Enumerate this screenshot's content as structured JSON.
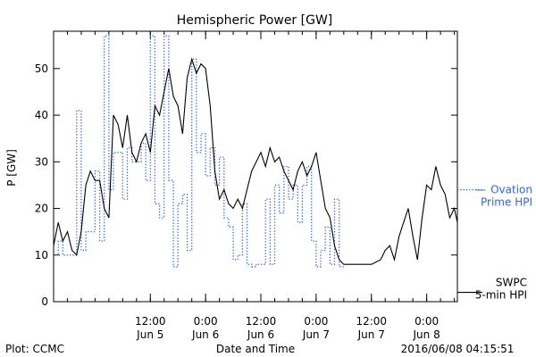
{
  "chart_data": {
    "type": "line",
    "title": "Hemispheric Power [GW]",
    "ylabel": "P [GW]",
    "xlabel": "Date and Time",
    "ylim": [
      0,
      58
    ],
    "xlim": [
      "2016-06-04 15:00",
      "2016-06-08 06:40"
    ],
    "grid": false,
    "y_ticks": [
      0,
      10,
      20,
      30,
      40,
      50
    ],
    "x_ticks": [
      {
        "time": "2016-06-05 12:00",
        "label_top": "12:00",
        "label_bottom": "Jun 5"
      },
      {
        "time": "2016-06-06 00:00",
        "label_top": "0:00",
        "label_bottom": "Jun 6"
      },
      {
        "time": "2016-06-06 12:00",
        "label_top": "12:00",
        "label_bottom": "Jun 6"
      },
      {
        "time": "2016-06-07 00:00",
        "label_top": "0:00",
        "label_bottom": "Jun 7"
      },
      {
        "time": "2016-06-07 12:00",
        "label_top": "12:00",
        "label_bottom": "Jun 7"
      },
      {
        "time": "2016-06-08 00:00",
        "label_top": "0:00",
        "label_bottom": "Jun 8"
      }
    ],
    "series": [
      {
        "name": "Ovation Prime HPI",
        "legend_lines": [
          "Ovation",
          "Prime HPI"
        ],
        "style": "dotted",
        "color": "#3366dd",
        "legend_value": 24,
        "points": [
          [
            "2016-06-04 15:00",
            10
          ],
          [
            "2016-06-04 16:00",
            10
          ],
          [
            "2016-06-04 16:00",
            13
          ],
          [
            "2016-06-04 17:00",
            13
          ],
          [
            "2016-06-04 17:00",
            10
          ],
          [
            "2016-06-04 20:00",
            10
          ],
          [
            "2016-06-04 20:00",
            41
          ],
          [
            "2016-06-04 21:00",
            41
          ],
          [
            "2016-06-04 21:00",
            11
          ],
          [
            "2016-06-04 22:00",
            11
          ],
          [
            "2016-06-04 22:00",
            15
          ],
          [
            "2016-06-05 00:00",
            15
          ],
          [
            "2016-06-05 00:00",
            28
          ],
          [
            "2016-06-05 01:00",
            28
          ],
          [
            "2016-06-05 01:00",
            13
          ],
          [
            "2016-06-05 02:00",
            13
          ],
          [
            "2016-06-05 02:00",
            57
          ],
          [
            "2016-06-05 03:00",
            57
          ],
          [
            "2016-06-05 03:00",
            24
          ],
          [
            "2016-06-05 04:00",
            24
          ],
          [
            "2016-06-05 04:00",
            32
          ],
          [
            "2016-06-05 06:00",
            32
          ],
          [
            "2016-06-05 06:00",
            22
          ],
          [
            "2016-06-05 07:00",
            22
          ],
          [
            "2016-06-05 07:00",
            33
          ],
          [
            "2016-06-05 08:00",
            33
          ],
          [
            "2016-06-05 08:00",
            30
          ],
          [
            "2016-06-05 10:00",
            30
          ],
          [
            "2016-06-05 10:00",
            34
          ],
          [
            "2016-06-05 11:00",
            34
          ],
          [
            "2016-06-05 11:00",
            26
          ],
          [
            "2016-06-05 12:00",
            26
          ],
          [
            "2016-06-05 12:00",
            57
          ],
          [
            "2016-06-05 13:00",
            57
          ],
          [
            "2016-06-05 13:00",
            21
          ],
          [
            "2016-06-05 14:00",
            21
          ],
          [
            "2016-06-05 14:00",
            18
          ],
          [
            "2016-06-05 15:00",
            18
          ],
          [
            "2016-06-05 15:00",
            57
          ],
          [
            "2016-06-05 16:00",
            57
          ],
          [
            "2016-06-05 16:00",
            26
          ],
          [
            "2016-06-05 17:00",
            26
          ],
          [
            "2016-06-05 17:00",
            7.5
          ],
          [
            "2016-06-05 18:00",
            7.5
          ],
          [
            "2016-06-05 18:00",
            21
          ],
          [
            "2016-06-05 19:00",
            21
          ],
          [
            "2016-06-05 19:00",
            23
          ],
          [
            "2016-06-05 20:00",
            23
          ],
          [
            "2016-06-05 20:00",
            11
          ],
          [
            "2016-06-05 21:00",
            11
          ],
          [
            "2016-06-05 21:00",
            52
          ],
          [
            "2016-06-05 22:00",
            52
          ],
          [
            "2016-06-05 22:00",
            32
          ],
          [
            "2016-06-05 23:00",
            32
          ],
          [
            "2016-06-05 23:00",
            36
          ],
          [
            "2016-06-06 00:00",
            36
          ],
          [
            "2016-06-06 00:00",
            27
          ],
          [
            "2016-06-06 01:00",
            27
          ],
          [
            "2016-06-06 01:00",
            33
          ],
          [
            "2016-06-06 02:00",
            33
          ],
          [
            "2016-06-06 02:00",
            25
          ],
          [
            "2016-06-06 03:00",
            25
          ],
          [
            "2016-06-06 03:00",
            31
          ],
          [
            "2016-06-06 04:00",
            31
          ],
          [
            "2016-06-06 04:00",
            18
          ],
          [
            "2016-06-06 05:00",
            18
          ],
          [
            "2016-06-06 05:00",
            16
          ],
          [
            "2016-06-06 06:00",
            16
          ],
          [
            "2016-06-06 06:00",
            9
          ],
          [
            "2016-06-06 07:00",
            9
          ],
          [
            "2016-06-06 07:00",
            10
          ],
          [
            "2016-06-06 08:00",
            10
          ],
          [
            "2016-06-06 08:00",
            21
          ],
          [
            "2016-06-06 09:00",
            21
          ],
          [
            "2016-06-06 09:00",
            8
          ],
          [
            "2016-06-06 10:00",
            8
          ],
          [
            "2016-06-06 10:00",
            7.5
          ],
          [
            "2016-06-06 11:00",
            7.5
          ],
          [
            "2016-06-06 11:00",
            8
          ],
          [
            "2016-06-06 12:00",
            8
          ],
          [
            "2016-06-06 12:00",
            8
          ],
          [
            "2016-06-06 13:00",
            8
          ],
          [
            "2016-06-06 13:00",
            22
          ],
          [
            "2016-06-06 14:00",
            22
          ],
          [
            "2016-06-06 14:00",
            8
          ],
          [
            "2016-06-06 15:00",
            8
          ],
          [
            "2016-06-06 15:00",
            25
          ],
          [
            "2016-06-06 16:00",
            25
          ],
          [
            "2016-06-06 16:00",
            19
          ],
          [
            "2016-06-06 17:00",
            19
          ],
          [
            "2016-06-06 17:00",
            29
          ],
          [
            "2016-06-06 18:00",
            29
          ],
          [
            "2016-06-06 18:00",
            22
          ],
          [
            "2016-06-06 19:00",
            22
          ],
          [
            "2016-06-06 19:00",
            25
          ],
          [
            "2016-06-06 20:00",
            25
          ],
          [
            "2016-06-06 20:00",
            17
          ],
          [
            "2016-06-06 21:00",
            17
          ],
          [
            "2016-06-06 21:00",
            25
          ],
          [
            "2016-06-06 22:00",
            25
          ],
          [
            "2016-06-06 22:00",
            29
          ],
          [
            "2016-06-06 23:00",
            29
          ],
          [
            "2016-06-06 23:00",
            13
          ],
          [
            "2016-06-07 00:00",
            13
          ],
          [
            "2016-06-07 00:00",
            7.5
          ],
          [
            "2016-06-07 01:00",
            7.5
          ],
          [
            "2016-06-07 01:00",
            11
          ],
          [
            "2016-06-07 02:00",
            11
          ],
          [
            "2016-06-07 02:00",
            16
          ],
          [
            "2016-06-07 03:00",
            16
          ],
          [
            "2016-06-07 03:00",
            8
          ],
          [
            "2016-06-07 04:00",
            8
          ],
          [
            "2016-06-07 04:00",
            22
          ],
          [
            "2016-06-07 05:00",
            22
          ],
          [
            "2016-06-07 05:00",
            7.5
          ],
          [
            "2016-06-07 06:00",
            7.5
          ]
        ]
      },
      {
        "name": "SWPC 5-min HPI",
        "legend_lines": [
          "SWPC",
          "5-min HPI"
        ],
        "style": "solid",
        "color": "#000000",
        "legend_value": 2,
        "points": [
          [
            "2016-06-04 15:00",
            12
          ],
          [
            "2016-06-04 16:00",
            17
          ],
          [
            "2016-06-04 17:00",
            13
          ],
          [
            "2016-06-04 18:00",
            15
          ],
          [
            "2016-06-04 19:00",
            11
          ],
          [
            "2016-06-04 20:00",
            10
          ],
          [
            "2016-06-04 21:00",
            15
          ],
          [
            "2016-06-04 22:00",
            25
          ],
          [
            "2016-06-04 23:00",
            28
          ],
          [
            "2016-06-05 00:00",
            26
          ],
          [
            "2016-06-05 01:00",
            26
          ],
          [
            "2016-06-05 02:00",
            20
          ],
          [
            "2016-06-05 03:00",
            18
          ],
          [
            "2016-06-05 04:00",
            40
          ],
          [
            "2016-06-05 05:00",
            38
          ],
          [
            "2016-06-05 06:00",
            33
          ],
          [
            "2016-06-05 07:00",
            40
          ],
          [
            "2016-06-05 08:00",
            32
          ],
          [
            "2016-06-05 09:00",
            30
          ],
          [
            "2016-06-05 10:00",
            34
          ],
          [
            "2016-06-05 11:00",
            36
          ],
          [
            "2016-06-05 12:00",
            32
          ],
          [
            "2016-06-05 13:00",
            42
          ],
          [
            "2016-06-05 14:00",
            40
          ],
          [
            "2016-06-05 15:00",
            45
          ],
          [
            "2016-06-05 16:00",
            50
          ],
          [
            "2016-06-05 17:00",
            44
          ],
          [
            "2016-06-05 18:00",
            42
          ],
          [
            "2016-06-05 19:00",
            36
          ],
          [
            "2016-06-05 20:00",
            48
          ],
          [
            "2016-06-05 21:00",
            52
          ],
          [
            "2016-06-05 22:00",
            49
          ],
          [
            "2016-06-05 23:00",
            51
          ],
          [
            "2016-06-06 00:00",
            50
          ],
          [
            "2016-06-06 01:00",
            42
          ],
          [
            "2016-06-06 02:00",
            28
          ],
          [
            "2016-06-06 03:00",
            22
          ],
          [
            "2016-06-06 04:00",
            24
          ],
          [
            "2016-06-06 05:00",
            21
          ],
          [
            "2016-06-06 06:00",
            20
          ],
          [
            "2016-06-06 07:00",
            22
          ],
          [
            "2016-06-06 08:00",
            20
          ],
          [
            "2016-06-06 09:00",
            24
          ],
          [
            "2016-06-06 10:00",
            28
          ],
          [
            "2016-06-06 11:00",
            30
          ],
          [
            "2016-06-06 12:00",
            32
          ],
          [
            "2016-06-06 13:00",
            29
          ],
          [
            "2016-06-06 14:00",
            33
          ],
          [
            "2016-06-06 15:00",
            30
          ],
          [
            "2016-06-06 16:00",
            31
          ],
          [
            "2016-06-06 17:00",
            28
          ],
          [
            "2016-06-06 18:00",
            26
          ],
          [
            "2016-06-06 19:00",
            24
          ],
          [
            "2016-06-06 20:00",
            28
          ],
          [
            "2016-06-06 21:00",
            30
          ],
          [
            "2016-06-06 22:00",
            27
          ],
          [
            "2016-06-06 23:00",
            29
          ],
          [
            "2016-06-07 00:00",
            32
          ],
          [
            "2016-06-07 01:00",
            26
          ],
          [
            "2016-06-07 02:00",
            20
          ],
          [
            "2016-06-07 03:00",
            18
          ],
          [
            "2016-06-07 04:00",
            12
          ],
          [
            "2016-06-07 05:00",
            9
          ],
          [
            "2016-06-07 06:00",
            8
          ],
          [
            "2016-06-07 08:00",
            8
          ],
          [
            "2016-06-07 10:00",
            8
          ],
          [
            "2016-06-07 12:00",
            8
          ],
          [
            "2016-06-07 14:00",
            9
          ],
          [
            "2016-06-07 15:00",
            11
          ],
          [
            "2016-06-07 16:00",
            12
          ],
          [
            "2016-06-07 17:00",
            9
          ],
          [
            "2016-06-07 18:00",
            14
          ],
          [
            "2016-06-07 19:00",
            17
          ],
          [
            "2016-06-07 20:00",
            20
          ],
          [
            "2016-06-07 21:00",
            14
          ],
          [
            "2016-06-07 22:00",
            9
          ],
          [
            "2016-06-07 23:00",
            18
          ],
          [
            "2016-06-08 00:00",
            25
          ],
          [
            "2016-06-08 01:00",
            24
          ],
          [
            "2016-06-08 02:00",
            29
          ],
          [
            "2016-06-08 03:00",
            25
          ],
          [
            "2016-06-08 04:00",
            23
          ],
          [
            "2016-06-08 05:00",
            18
          ],
          [
            "2016-06-08 06:00",
            20
          ],
          [
            "2016-06-08 06:40",
            17
          ]
        ]
      }
    ]
  },
  "footer": {
    "left": "Plot: CCMC",
    "center": "Date and Time",
    "right": "2016/06/08 04:15:51"
  }
}
